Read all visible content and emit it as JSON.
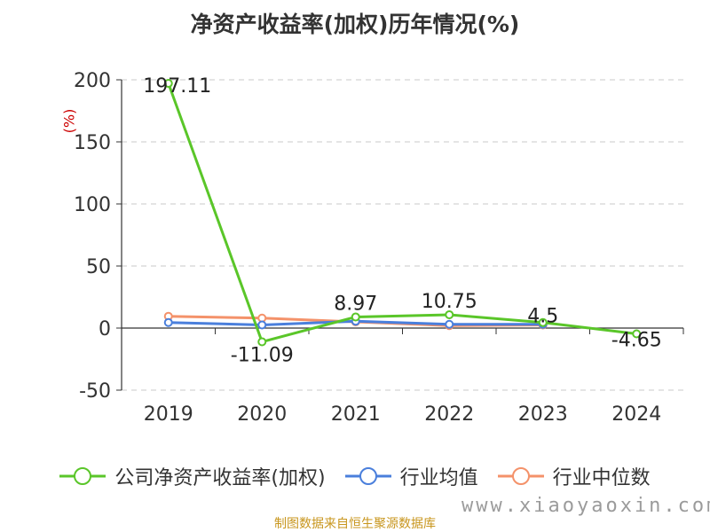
{
  "title": "净资产收益率(加权)历年情况(%)",
  "unit_label": "(%)",
  "source": "制图数据来自恒生聚源数据库",
  "watermark": "www.xiaoyaoxin.com",
  "chart_data": {
    "type": "line",
    "title": "净资产收益率(加权)历年情况(%)",
    "ylabel": "(%)",
    "xlabel": "",
    "categories": [
      "2019",
      "2020",
      "2021",
      "2022",
      "2023",
      "2024"
    ],
    "ylim": [
      -50,
      200
    ],
    "yticks": [
      200,
      150,
      100,
      50,
      0,
      -50
    ],
    "grid": true,
    "legend_position": "bottom",
    "series": [
      {
        "name": "公司净资产收益率(加权)",
        "color": "#5ac629",
        "values": [
          197.11,
          -11.09,
          8.97,
          10.75,
          4.5,
          -4.65
        ],
        "labels": [
          "197.11",
          "-11.09",
          "8.97",
          "10.75",
          "4.5",
          "-4.65"
        ]
      },
      {
        "name": "行业均值",
        "color": "#4a7fdc",
        "values": [
          4.5,
          2.5,
          5.5,
          3.0,
          3.0,
          null
        ],
        "labels": []
      },
      {
        "name": "行业中位数",
        "color": "#f4926a",
        "values": [
          9.5,
          8.0,
          5.0,
          2.0,
          2.5,
          null
        ],
        "labels": []
      }
    ]
  }
}
